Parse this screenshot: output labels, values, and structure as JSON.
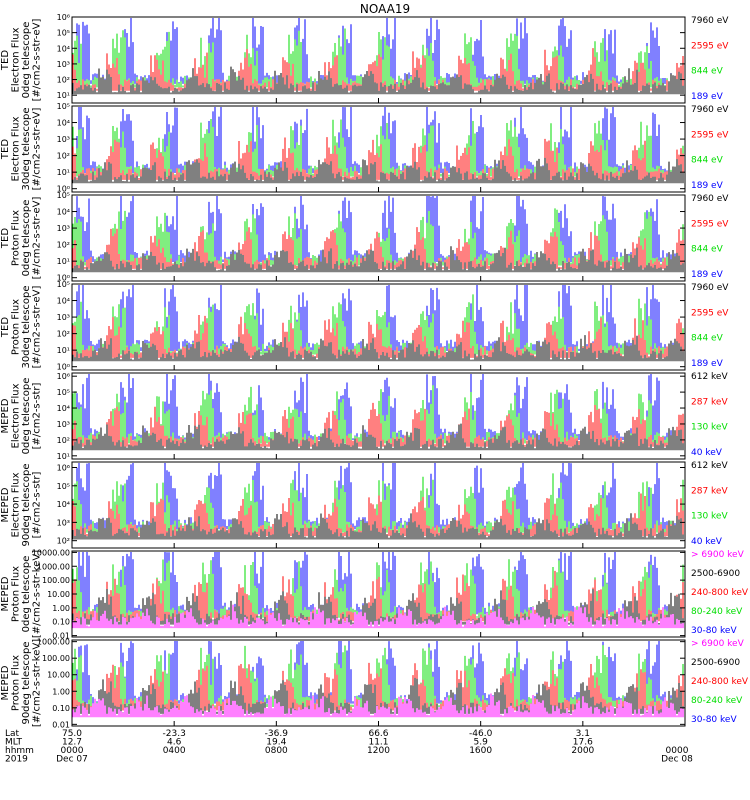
{
  "title": "NOAA19",
  "panels": [
    {
      "ylabel": [
        "TED",
        "Electron Flux",
        "0deg telescope",
        "[#/cm2-s-str-eV]"
      ],
      "ytick_labels": [
        "10¹",
        "10²",
        "10³",
        "10⁴",
        "10⁵",
        "10⁶"
      ],
      "ytick_exps": [
        1,
        2,
        3,
        4,
        5,
        6
      ],
      "ylog": [
        0.5,
        6.0
      ],
      "legend": [
        {
          "label": "7960 eV",
          "color": "#000000"
        },
        {
          "label": "2595 eV",
          "color": "#ff0000"
        },
        {
          "label": "844 eV",
          "color": "#00dd00"
        },
        {
          "label": "189 eV",
          "color": "#0000ff"
        }
      ]
    },
    {
      "ylabel": [
        "TED",
        "Electron Flux",
        "30deg telescope",
        "[#/cm2-s-str-eV]"
      ],
      "ytick_labels": [
        "10⁰",
        "10¹",
        "10²",
        "10³",
        "10⁴",
        "10⁵"
      ],
      "ytick_exps": [
        0,
        1,
        2,
        3,
        4,
        5
      ],
      "ylog": [
        -0.2,
        5.0
      ],
      "legend": [
        {
          "label": "7960 eV",
          "color": "#000000"
        },
        {
          "label": "2595 eV",
          "color": "#ff0000"
        },
        {
          "label": "844 eV",
          "color": "#00dd00"
        },
        {
          "label": "189 eV",
          "color": "#0000ff"
        }
      ]
    },
    {
      "ylabel": [
        "TED",
        "Proton Flux",
        "0deg telescope",
        "[#/cm2-s-str-eV]"
      ],
      "ytick_labels": [
        "10⁰",
        "10¹",
        "10²",
        "10³",
        "10⁴",
        "10⁵"
      ],
      "ytick_exps": [
        0,
        1,
        2,
        3,
        4,
        5
      ],
      "ylog": [
        -0.2,
        5.0
      ],
      "legend": [
        {
          "label": "7960 eV",
          "color": "#000000"
        },
        {
          "label": "2595 eV",
          "color": "#ff0000"
        },
        {
          "label": "844 eV",
          "color": "#00dd00"
        },
        {
          "label": "189 eV",
          "color": "#0000ff"
        }
      ]
    },
    {
      "ylabel": [
        "TED",
        "Proton Flux",
        "30deg telescope",
        "[#/cm2-s-str-eV]"
      ],
      "ytick_labels": [
        "10⁰",
        "10¹",
        "10²",
        "10³",
        "10⁴",
        "10⁵"
      ],
      "ytick_exps": [
        0,
        1,
        2,
        3,
        4,
        5
      ],
      "ylog": [
        -0.2,
        5.0
      ],
      "legend": [
        {
          "label": "7960 eV",
          "color": "#000000"
        },
        {
          "label": "2595 eV",
          "color": "#ff0000"
        },
        {
          "label": "844 eV",
          "color": "#00dd00"
        },
        {
          "label": "189 eV",
          "color": "#0000ff"
        }
      ]
    },
    {
      "ylabel": [
        "MEPED",
        "Electron Flux",
        "0deg telescope",
        "[#/cm2-s-str]"
      ],
      "ytick_labels": [
        "10¹",
        "10²",
        "10³",
        "10⁴",
        "10⁵",
        "10⁶"
      ],
      "ytick_exps": [
        1,
        2,
        3,
        4,
        5,
        6
      ],
      "ylog": [
        0.8,
        6.2
      ],
      "legend": [
        {
          "label": "612 keV",
          "color": "#000000"
        },
        {
          "label": "287 keV",
          "color": "#ff0000"
        },
        {
          "label": "130 keV",
          "color": "#00dd00"
        },
        {
          "label": "40 keV",
          "color": "#0000ff"
        }
      ]
    },
    {
      "ylabel": [
        "MEPED",
        "Electron Flux",
        "90deg telescope",
        "[#/cm2-s-str]"
      ],
      "ytick_labels": [
        "10²",
        "10³",
        "10⁴",
        "10⁵",
        "10⁶"
      ],
      "ytick_exps": [
        2,
        3,
        4,
        5,
        6
      ],
      "ylog": [
        1.6,
        6.3
      ],
      "legend": [
        {
          "label": "612 keV",
          "color": "#000000"
        },
        {
          "label": "287 keV",
          "color": "#ff0000"
        },
        {
          "label": "130 keV",
          "color": "#00dd00"
        },
        {
          "label": "40 keV",
          "color": "#0000ff"
        }
      ]
    },
    {
      "ylabel": [
        "MEPED",
        "Proton Flux",
        "0deg telescope",
        "[#/cm2-s-str-keV]"
      ],
      "ytick_labels": [
        "0.01",
        "0.10",
        "1.00",
        "10.00",
        "100.00",
        "1000.00",
        "10000.00"
      ],
      "ytick_exps": [
        -2,
        -1,
        0,
        1,
        2,
        3,
        4
      ],
      "ylog": [
        -2.1,
        4.1
      ],
      "legend": [
        {
          "label": "> 6900 keV",
          "color": "#ff00ff"
        },
        {
          "label": "2500-6900",
          "color": "#000000"
        },
        {
          "label": "240-800 keV",
          "color": "#ff0000"
        },
        {
          "label": "80-240 keV",
          "color": "#00dd00"
        },
        {
          "label": "30-80 keV",
          "color": "#0000ff"
        }
      ]
    },
    {
      "ylabel": [
        "MEPED",
        "Proton Flux",
        "90deg telescope",
        "[#/cm2-s-str-keV]"
      ],
      "ytick_labels": [
        "0.01",
        "0.10",
        "1.00",
        "10.00",
        "100.00",
        "1000.00"
      ],
      "ytick_exps": [
        -2,
        -1,
        0,
        1,
        2,
        3
      ],
      "ylog": [
        -2.1,
        3.1
      ],
      "legend": [
        {
          "label": "> 6900 keV",
          "color": "#ff00ff"
        },
        {
          "label": "2500-6900",
          "color": "#000000"
        },
        {
          "label": "240-800 keV",
          "color": "#ff0000"
        },
        {
          "label": "80-240 keV",
          "color": "#00dd00"
        },
        {
          "label": "30-80 keV",
          "color": "#0000ff"
        }
      ]
    }
  ],
  "xaxis": {
    "row_labels": [
      "Lat",
      "MLT",
      "hhmm",
      "2019"
    ],
    "ticks": [
      {
        "lat": "75.0",
        "mlt": "12.7",
        "hhmm": "0000",
        "date": "Dec 07"
      },
      {
        "lat": "-23.3",
        "mlt": "4.6",
        "hhmm": "0400",
        "date": ""
      },
      {
        "lat": "-36.9",
        "mlt": "19.4",
        "hhmm": "0800",
        "date": ""
      },
      {
        "lat": "66.6",
        "mlt": "11.1",
        "hhmm": "1200",
        "date": ""
      },
      {
        "lat": "-46.0",
        "mlt": "5.9",
        "hhmm": "1600",
        "date": ""
      },
      {
        "lat": "3.1",
        "mlt": "17.6",
        "hhmm": "2000",
        "date": ""
      },
      {
        "lat": "",
        "mlt": "",
        "hhmm": "0000",
        "date": "Dec 08"
      }
    ]
  },
  "chart_data": {
    "type": "line",
    "title": "NOAA19",
    "xlabel": "hhmm",
    "xlim": [
      "0000 Dec 07",
      "0000 Dec 08"
    ],
    "yscale": "log",
    "series_by_panel": [
      [
        "7960 eV",
        "2595 eV",
        "844 eV",
        "189 eV"
      ],
      [
        "7960 eV",
        "2595 eV",
        "844 eV",
        "189 eV"
      ],
      [
        "7960 eV",
        "2595 eV",
        "844 eV",
        "189 eV"
      ],
      [
        "7960 eV",
        "2595 eV",
        "844 eV",
        "189 eV"
      ],
      [
        "612 keV",
        "287 keV",
        "130 keV",
        "40 keV"
      ],
      [
        "612 keV",
        "287 keV",
        "130 keV",
        "40 keV"
      ],
      [
        "> 6900 keV",
        "2500-6900",
        "240-800 keV",
        "80-240 keV",
        "30-80 keV"
      ],
      [
        "> 6900 keV",
        "2500-6900",
        "240-800 keV",
        "80-240 keV",
        "30-80 keV"
      ]
    ]
  }
}
